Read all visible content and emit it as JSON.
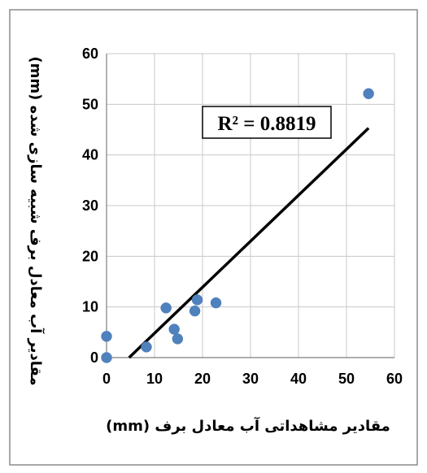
{
  "chart_data": {
    "type": "scatter",
    "xlabel": "مقادیر مشاهداتی آب معادل برف (mm)",
    "ylabel": "مقادیر آب معادل برف شبیه سازی شده (mm)",
    "xlim": [
      0,
      60
    ],
    "ylim": [
      0,
      60
    ],
    "xticks": [
      "0",
      "10",
      "20",
      "30",
      "40",
      "50",
      "60"
    ],
    "yticks": [
      "0",
      "10",
      "20",
      "30",
      "40",
      "50",
      "60"
    ],
    "grid": true,
    "series": [
      {
        "marker_color": "#4f81bd",
        "points": [
          {
            "x": 0.0,
            "y": 4.2
          },
          {
            "x": 0.0,
            "y": 0.0
          },
          {
            "x": 8.3,
            "y": 2.1
          },
          {
            "x": 12.4,
            "y": 9.8
          },
          {
            "x": 14.1,
            "y": 5.6
          },
          {
            "x": 14.8,
            "y": 3.7
          },
          {
            "x": 18.4,
            "y": 9.2
          },
          {
            "x": 18.9,
            "y": 11.4
          },
          {
            "x": 22.8,
            "y": 10.8
          },
          {
            "x": 54.6,
            "y": 52.1
          }
        ]
      }
    ],
    "trendline": {
      "color": "#000000",
      "start": {
        "x": 4.7,
        "y": 0.0
      },
      "end": {
        "x": 54.6,
        "y": 45.3
      }
    },
    "annotation": {
      "text": "R² = 0.8819"
    }
  }
}
